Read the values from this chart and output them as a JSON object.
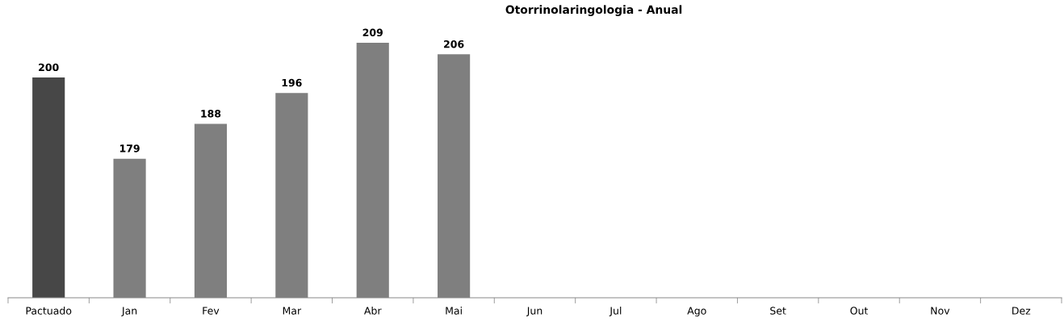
{
  "chart_data": {
    "type": "bar",
    "title": "Otorrinolaringologia - Anual",
    "categories": [
      "Pactuado",
      "Jan",
      "Fev",
      "Mar",
      "Abr",
      "Mai",
      "Jun",
      "Jul",
      "Ago",
      "Set",
      "Out",
      "Nov",
      "Dez"
    ],
    "values": [
      200,
      179,
      188,
      196,
      209,
      206,
      null,
      null,
      null,
      null,
      null,
      null,
      null
    ],
    "colors": [
      "#474747",
      "#7f7f7f",
      "#7f7f7f",
      "#7f7f7f",
      "#7f7f7f",
      "#7f7f7f",
      "#7f7f7f",
      "#7f7f7f",
      "#7f7f7f",
      "#7f7f7f",
      "#7f7f7f",
      "#7f7f7f",
      "#7f7f7f"
    ],
    "ylim": [
      143,
      209
    ],
    "data_labels": true,
    "grid": false,
    "legend": false,
    "tick_labels": "x"
  }
}
